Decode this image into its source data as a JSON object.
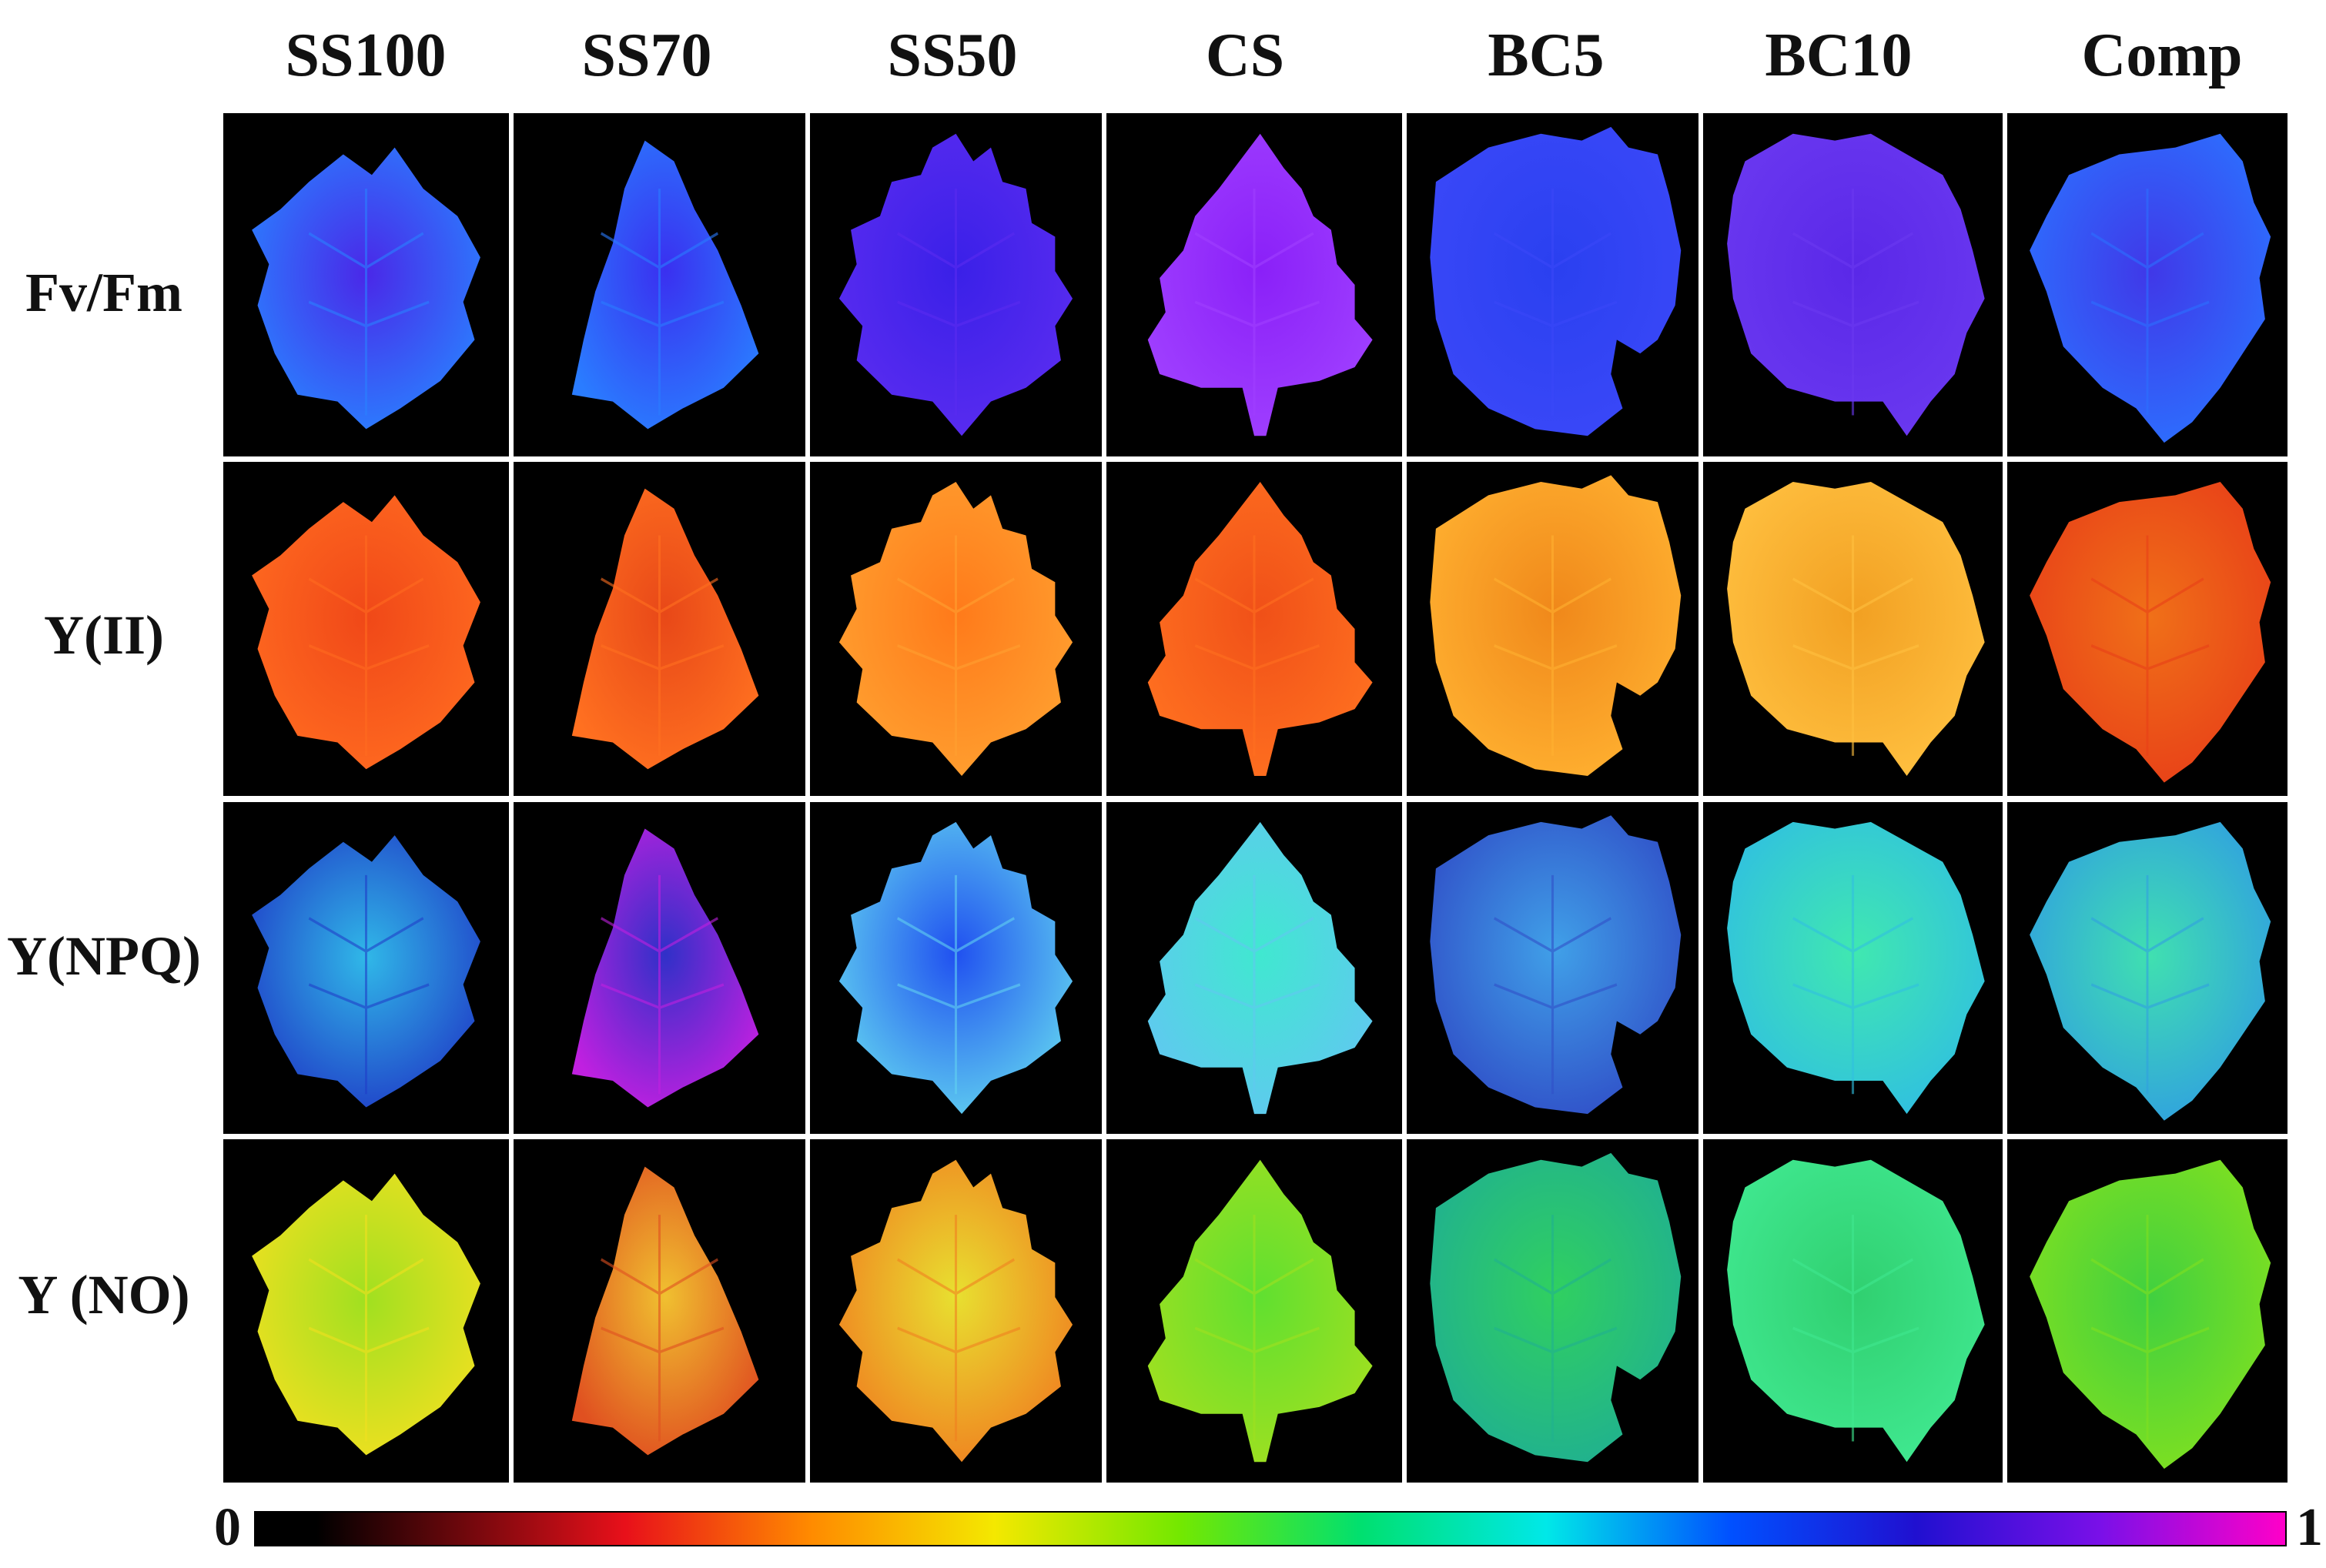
{
  "columns": [
    "SS100",
    "SS70",
    "SS50",
    "CS",
    "BC5",
    "BC10",
    "Comp"
  ],
  "rows": [
    "Fv/Fm",
    "Y(II)",
    "Y(NPQ)",
    "Y (NO)"
  ],
  "scale": {
    "min_label": "0",
    "max_label": "1"
  },
  "colorbar_stops": [
    "#000000",
    "#000000",
    "#e8101a",
    "#ff8a00",
    "#f4e800",
    "#74e800",
    "#00e070",
    "#00e8e8",
    "#0050ff",
    "#2010d0",
    "#7a10e8",
    "#ff00c8"
  ],
  "cells": [
    [
      {
        "base": "#4a28e8",
        "light": "#2a80ff"
      },
      {
        "base": "#3a30f0",
        "light": "#2a7cff"
      },
      {
        "base": "#3a20e8",
        "light": "#5a2cf0"
      },
      {
        "base": "#8a20f8",
        "light": "#a040ff"
      },
      {
        "base": "#2a40f0",
        "light": "#3a48f8"
      },
      {
        "base": "#5a28e8",
        "light": "#6a38f0"
      },
      {
        "base": "#4038e8",
        "light": "#2c70ff"
      }
    ],
    [
      {
        "base": "#f04818",
        "light": "#ff6a20"
      },
      {
        "base": "#e84818",
        "light": "#ff7020"
      },
      {
        "base": "#ff7a1a",
        "light": "#ffa030"
      },
      {
        "base": "#f05018",
        "light": "#ff7020"
      },
      {
        "base": "#f0881a",
        "light": "#ffb030"
      },
      {
        "base": "#f2a022",
        "light": "#ffc040"
      },
      {
        "base": "#f07018",
        "light": "#e84018"
      }
    ],
    [
      {
        "base": "#30b8e8",
        "light": "#2040c8"
      },
      {
        "base": "#3030c8",
        "light": "#c020e0"
      },
      {
        "base": "#2050f0",
        "light": "#60d0f0"
      },
      {
        "base": "#40e8d0",
        "light": "#60c8f0"
      },
      {
        "base": "#40a0e8",
        "light": "#3050c8"
      },
      {
        "base": "#40e8b0",
        "light": "#30c0e0"
      },
      {
        "base": "#40e0b0",
        "light": "#30a0e0"
      }
    ],
    [
      {
        "base": "#a0e020",
        "light": "#f0e020"
      },
      {
        "base": "#f0c030",
        "light": "#e05020"
      },
      {
        "base": "#e8e030",
        "light": "#f08020"
      },
      {
        "base": "#60e030",
        "light": "#a0e020"
      },
      {
        "base": "#30d060",
        "light": "#20b090"
      },
      {
        "base": "#30d070",
        "light": "#40e890"
      },
      {
        "base": "#40d040",
        "light": "#80e020"
      }
    ]
  ]
}
